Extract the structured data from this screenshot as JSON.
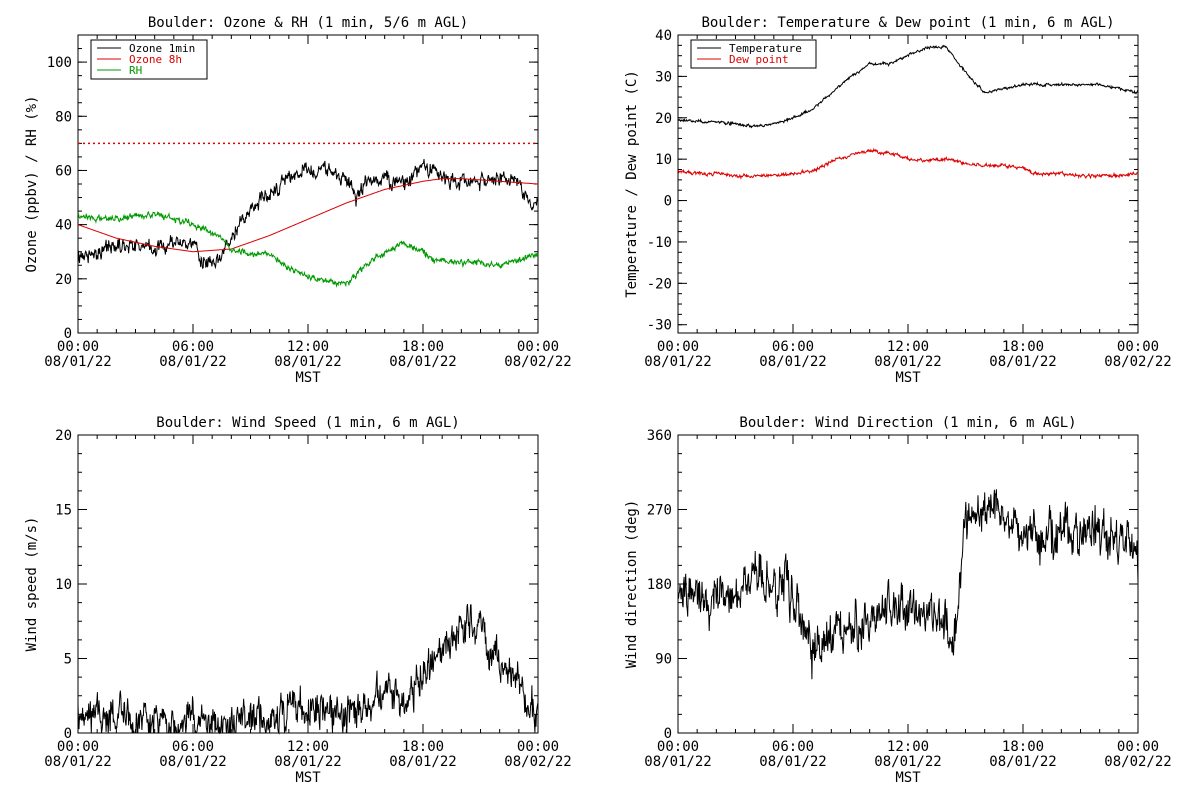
{
  "chart_data": [
    {
      "id": "ozone-rh",
      "type": "line",
      "title": "Boulder: Ozone & RH (1 min, 5/6 m AGL)",
      "ylabel": "Ozone (ppbv) / RH (%)",
      "xlabel": "MST",
      "ylim": [
        0,
        110
      ],
      "yticks": [
        0,
        20,
        40,
        60,
        80,
        100
      ],
      "ytick_labels": [
        "0",
        "20",
        "40",
        "60",
        "80",
        "100"
      ],
      "xlim": [
        0,
        24
      ],
      "xticks": [
        0,
        6,
        12,
        18,
        24
      ],
      "xtick_labels": [
        [
          "00:00",
          "08/01/22"
        ],
        [
          "06:00",
          "08/01/22"
        ],
        [
          "12:00",
          "08/01/22"
        ],
        [
          "18:00",
          "08/01/22"
        ],
        [
          "00:00",
          "08/02/22"
        ]
      ],
      "legend": "top-left",
      "reference_line": {
        "y": 70,
        "color": "#dd0000",
        "style": "dotted"
      },
      "series": [
        {
          "name": "Ozone 1min",
          "color": "#000000",
          "noise": 3.5,
          "x": [
            0,
            1,
            2,
            3,
            4,
            5,
            6,
            6.5,
            7,
            7.5,
            8,
            9,
            10,
            11,
            12,
            13,
            14,
            14.5,
            15,
            16,
            17,
            18,
            18.5,
            19,
            20,
            21,
            22,
            23,
            23.5,
            24
          ],
          "y": [
            28,
            30,
            32,
            33,
            31,
            33,
            33,
            27,
            24,
            28,
            35,
            45,
            52,
            57,
            60,
            60,
            57,
            50,
            56,
            57,
            55,
            61,
            61,
            58,
            56,
            56,
            57,
            55,
            49,
            48
          ]
        },
        {
          "name": "Ozone 8h",
          "color": "#dd0000",
          "noise": 0,
          "x": [
            0,
            2,
            4,
            6,
            8,
            10,
            12,
            14,
            16,
            18,
            19,
            20,
            22,
            24
          ],
          "y": [
            40,
            35,
            32,
            30,
            31,
            36,
            42,
            48,
            53,
            56,
            57,
            57,
            56,
            55
          ]
        },
        {
          "name": "RH",
          "color": "#009900",
          "noise": 1.4,
          "x": [
            0,
            1,
            2,
            3,
            4,
            5,
            6,
            7,
            8,
            9,
            10,
            11,
            12,
            13,
            14,
            15,
            16,
            17,
            18,
            18.5,
            19,
            20,
            21,
            22,
            23,
            24
          ],
          "y": [
            44,
            42,
            42,
            43,
            44,
            42,
            40,
            37,
            31,
            29,
            29,
            24,
            21,
            19,
            18,
            25,
            30,
            33,
            30,
            27,
            27,
            26,
            26,
            25,
            27,
            29
          ]
        }
      ]
    },
    {
      "id": "temp-dew",
      "type": "line",
      "title": "Boulder: Temperature & Dew point (1 min, 6 m AGL)",
      "ylabel": "Temperature / Dew point (C)",
      "xlabel": "MST",
      "ylim": [
        -32,
        40
      ],
      "yticks": [
        -30,
        -20,
        -10,
        0,
        10,
        20,
        30,
        40
      ],
      "ytick_labels": [
        "-30",
        "-20",
        "-10",
        "0",
        "10",
        "20",
        "30",
        "40"
      ],
      "xlim": [
        0,
        24
      ],
      "xticks": [
        0,
        6,
        12,
        18,
        24
      ],
      "xtick_labels": [
        [
          "00:00",
          "08/01/22"
        ],
        [
          "06:00",
          "08/01/22"
        ],
        [
          "12:00",
          "08/01/22"
        ],
        [
          "18:00",
          "08/01/22"
        ],
        [
          "00:00",
          "08/02/22"
        ]
      ],
      "legend": "top-left",
      "series": [
        {
          "name": "Temperature",
          "color": "#000000",
          "noise": 0.4,
          "x": [
            0,
            1,
            2,
            3,
            4,
            5,
            6,
            7,
            8,
            9,
            10,
            11,
            12,
            13,
            14,
            15,
            16,
            17,
            18,
            19,
            20,
            21,
            22,
            23,
            24
          ],
          "y": [
            19.5,
            19,
            19,
            18.5,
            18,
            18.5,
            20,
            22,
            26,
            30,
            33,
            33,
            35,
            37,
            37,
            31,
            26,
            27,
            28,
            28,
            28,
            28,
            28,
            27,
            26
          ]
        },
        {
          "name": "Dew point",
          "color": "#dd0000",
          "noise": 0.5,
          "x": [
            0,
            1,
            2,
            3,
            4,
            5,
            6,
            7,
            8,
            9,
            10,
            11,
            12,
            13,
            14,
            15,
            16,
            17,
            18,
            18.5,
            20,
            21,
            22,
            23,
            24
          ],
          "y": [
            7,
            6.5,
            6.5,
            6,
            6,
            6,
            6.5,
            7,
            9.5,
            11,
            12,
            11.5,
            10,
            9.5,
            10,
            9,
            8.5,
            8.5,
            8,
            6.5,
            6.5,
            6,
            6,
            6,
            6.5
          ]
        }
      ]
    },
    {
      "id": "wind-speed",
      "type": "line",
      "title": "Boulder: Wind Speed (1 min, 6 m AGL)",
      "ylabel": "Wind speed (m/s)",
      "xlabel": "MST",
      "ylim": [
        0,
        20
      ],
      "yticks": [
        0,
        5,
        10,
        15,
        20
      ],
      "ytick_labels": [
        "0",
        "5",
        "10",
        "15",
        "20"
      ],
      "xlim": [
        0,
        24
      ],
      "xticks": [
        0,
        6,
        12,
        18,
        24
      ],
      "xtick_labels": [
        [
          "00:00",
          "08/01/22"
        ],
        [
          "06:00",
          "08/01/22"
        ],
        [
          "12:00",
          "08/01/22"
        ],
        [
          "18:00",
          "08/01/22"
        ],
        [
          "00:00",
          "08/02/22"
        ]
      ],
      "legend": "none",
      "series": [
        {
          "name": "",
          "color": "#000000",
          "noise": 1.6,
          "x": [
            0,
            1,
            2,
            3,
            4,
            5,
            6,
            7,
            8,
            9,
            10,
            11,
            12,
            13,
            14,
            15,
            16,
            17,
            18,
            19,
            20,
            21,
            22,
            23,
            23.5,
            24
          ],
          "y": [
            0.7,
            1,
            1.2,
            0.8,
            0.6,
            0.8,
            0.7,
            0.5,
            0.6,
            1,
            1.2,
            1.5,
            1.8,
            1.6,
            1.4,
            1.8,
            2.5,
            2,
            4,
            5.5,
            7.5,
            6.5,
            4.5,
            3.5,
            2,
            1.2
          ],
          "clamp_min": 0
        }
      ]
    },
    {
      "id": "wind-direction",
      "type": "line",
      "title": "Boulder: Wind Direction (1 min, 6 m AGL)",
      "ylabel": "Wind direction (deg)",
      "xlabel": "MST",
      "ylim": [
        0,
        360
      ],
      "yticks": [
        0,
        90,
        180,
        270,
        360
      ],
      "ytick_labels": [
        "0",
        "90",
        "180",
        "270",
        "360"
      ],
      "xlim": [
        0,
        24
      ],
      "xticks": [
        0,
        6,
        12,
        18,
        24
      ],
      "xtick_labels": [
        [
          "00:00",
          "08/01/22"
        ],
        [
          "06:00",
          "08/01/22"
        ],
        [
          "12:00",
          "08/01/22"
        ],
        [
          "18:00",
          "08/01/22"
        ],
        [
          "00:00",
          "08/02/22"
        ]
      ],
      "legend": "none",
      "series": [
        {
          "name": "",
          "color": "#000000",
          "noise": 35,
          "x": [
            0,
            1,
            2,
            3,
            4,
            5,
            6,
            7,
            8,
            9,
            10,
            11,
            12,
            13,
            14,
            14.5,
            15,
            16,
            17,
            18,
            19,
            20,
            21,
            22,
            23,
            23.5,
            24
          ],
          "y": [
            180,
            170,
            160,
            175,
            185,
            180,
            170,
            100,
            110,
            125,
            135,
            145,
            155,
            140,
            130,
            130,
            260,
            270,
            275,
            240,
            235,
            240,
            245,
            240,
            235,
            240,
            200
          ],
          "clamp_min": 0,
          "clamp_max": 360
        }
      ]
    }
  ]
}
